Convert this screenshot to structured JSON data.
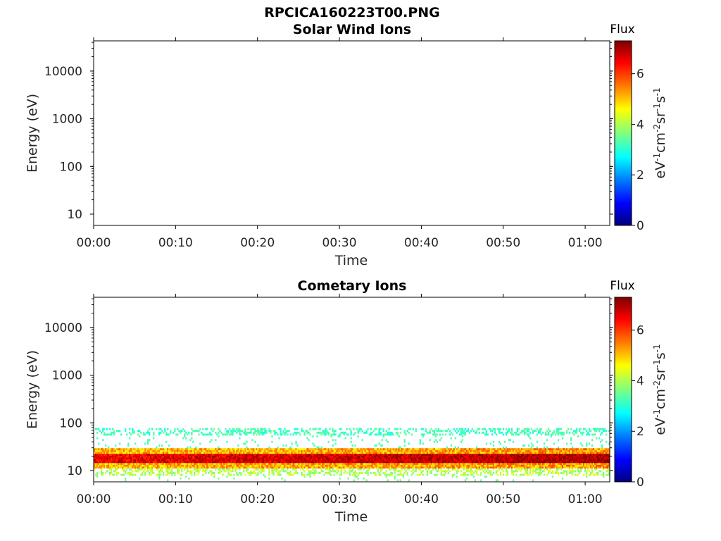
{
  "page": {
    "title": "RPCICA160223T00.PNG"
  },
  "colorbar": {
    "title": "Flux",
    "ticks": [
      "0",
      "2",
      "4",
      "6"
    ],
    "tick_values": [
      0,
      2,
      4,
      6
    ],
    "range": [
      0,
      7.3
    ],
    "colormap": [
      "#00007f",
      "#0000ff",
      "#007fff",
      "#00ffff",
      "#7fff7f",
      "#ffff00",
      "#ff7f00",
      "#ff0000",
      "#7f0000"
    ]
  },
  "chart_data": [
    {
      "type": "heatmap",
      "title": "Solar Wind Ions",
      "xlabel": "Time",
      "ylabel": "Energy (eV)",
      "x_ticks": [
        "00:00",
        "00:10",
        "00:20",
        "00:30",
        "00:40",
        "00:50",
        "01:00"
      ],
      "x_tick_minutes": [
        0,
        10,
        20,
        30,
        40,
        50,
        60
      ],
      "xlim_minutes": [
        0,
        63
      ],
      "y_ticks": [
        "10",
        "100",
        "1000",
        "10000"
      ],
      "y_tick_values": [
        10,
        100,
        1000,
        10000
      ],
      "yscale": "log",
      "ylim": [
        5.8,
        43000
      ],
      "colorbar_label": "eV",
      "flux_band": null
    },
    {
      "type": "heatmap",
      "title": "Cometary Ions",
      "xlabel": "Time",
      "ylabel": "Energy (eV)",
      "x_ticks": [
        "00:00",
        "00:10",
        "00:20",
        "00:30",
        "00:40",
        "00:50",
        "01:00"
      ],
      "x_tick_minutes": [
        0,
        10,
        20,
        30,
        40,
        50,
        60
      ],
      "xlim_minutes": [
        0,
        63
      ],
      "y_ticks": [
        "10",
        "100",
        "1000",
        "10000"
      ],
      "y_tick_values": [
        10,
        100,
        1000,
        10000
      ],
      "yscale": "log",
      "ylim": [
        5.8,
        43000
      ],
      "colorbar_label": "eV",
      "flux_band": {
        "core_energy_ev": [
          15,
          22
        ],
        "core_flux": 6.5,
        "halo_energy_ev": [
          11,
          30
        ],
        "halo_flux": 5.0,
        "fringe_energy_ev": [
          8,
          12
        ],
        "fringe_flux": 4.0,
        "upper_patchy_energy_ev": [
          55,
          80
        ],
        "upper_patchy_flux": 3.2,
        "time_range_minutes": [
          0,
          63
        ]
      }
    }
  ]
}
